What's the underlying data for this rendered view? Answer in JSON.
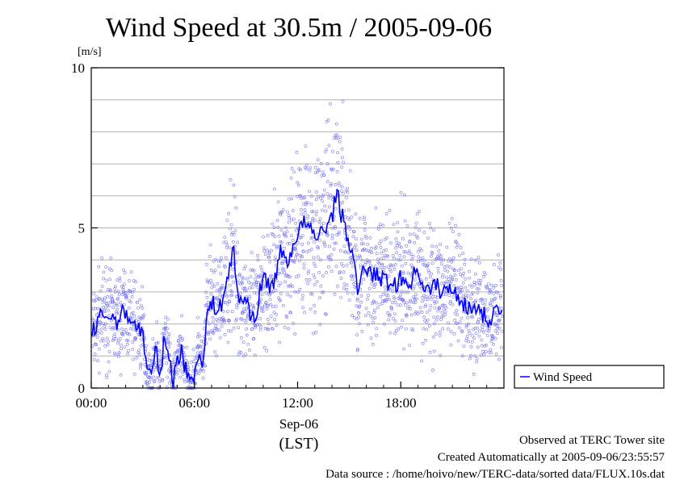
{
  "chart_data": {
    "type": "line",
    "title": "Wind Speed at 30.5m / 2005-09-06",
    "ylabel": "[m/s]",
    "xlabel_date": "Sep-06",
    "xlabel_zone": "(LST)",
    "ylim": [
      0,
      10
    ],
    "xlim_hours": [
      0,
      24
    ],
    "y_ticks": [
      "0",
      "5",
      "10"
    ],
    "x_ticks": [
      "00:00",
      "06:00",
      "12:00",
      "18:00"
    ],
    "grid": true,
    "legend_position": "bottom-right",
    "colors": {
      "line": "#0000ff",
      "points": "#7777ee"
    },
    "series": [
      {
        "name": "Wind Speed",
        "x_hours": [
          0,
          0.5,
          1,
          1.5,
          2,
          2.5,
          3,
          3.25,
          3.5,
          3.75,
          4,
          4.25,
          4.5,
          4.75,
          5,
          5.25,
          5.5,
          5.75,
          6,
          6.25,
          6.5,
          6.75,
          7,
          7.5,
          8,
          8.25,
          8.5,
          9,
          9.5,
          10,
          10.5,
          11,
          11.5,
          12,
          12.5,
          13,
          13.5,
          14,
          14.25,
          14.5,
          15,
          15.5,
          16,
          16.5,
          17,
          17.5,
          18,
          18.5,
          19,
          19.5,
          20,
          20.5,
          21,
          21.5,
          22,
          22.5,
          23,
          23.5
        ],
        "values": [
          1.6,
          2.2,
          2.3,
          2.1,
          2.4,
          2.0,
          1.7,
          0.6,
          0.3,
          1.2,
          0.4,
          1.5,
          1.1,
          0.2,
          0.8,
          1.3,
          0.5,
          0.2,
          0.4,
          1.3,
          0.6,
          2.4,
          2.6,
          2.5,
          3.6,
          4.4,
          2.9,
          2.7,
          2.1,
          3.5,
          3.1,
          4.2,
          4.0,
          4.9,
          5.2,
          4.6,
          5.0,
          5.3,
          6.2,
          5.5,
          4.6,
          3.1,
          3.8,
          3.5,
          3.4,
          3.2,
          3.4,
          3.3,
          3.7,
          3.0,
          3.2,
          3.0,
          3.1,
          2.8,
          2.4,
          2.6,
          2.1,
          2.4
        ]
      }
    ]
  },
  "footer": {
    "observed": "Observed at TERC Tower site",
    "created": "Created Automatically at 2005-09-06/23:55:57",
    "source": "Data source : /home/hoivo/new/TERC-data/sorted  data/FLUX.10s.dat"
  }
}
